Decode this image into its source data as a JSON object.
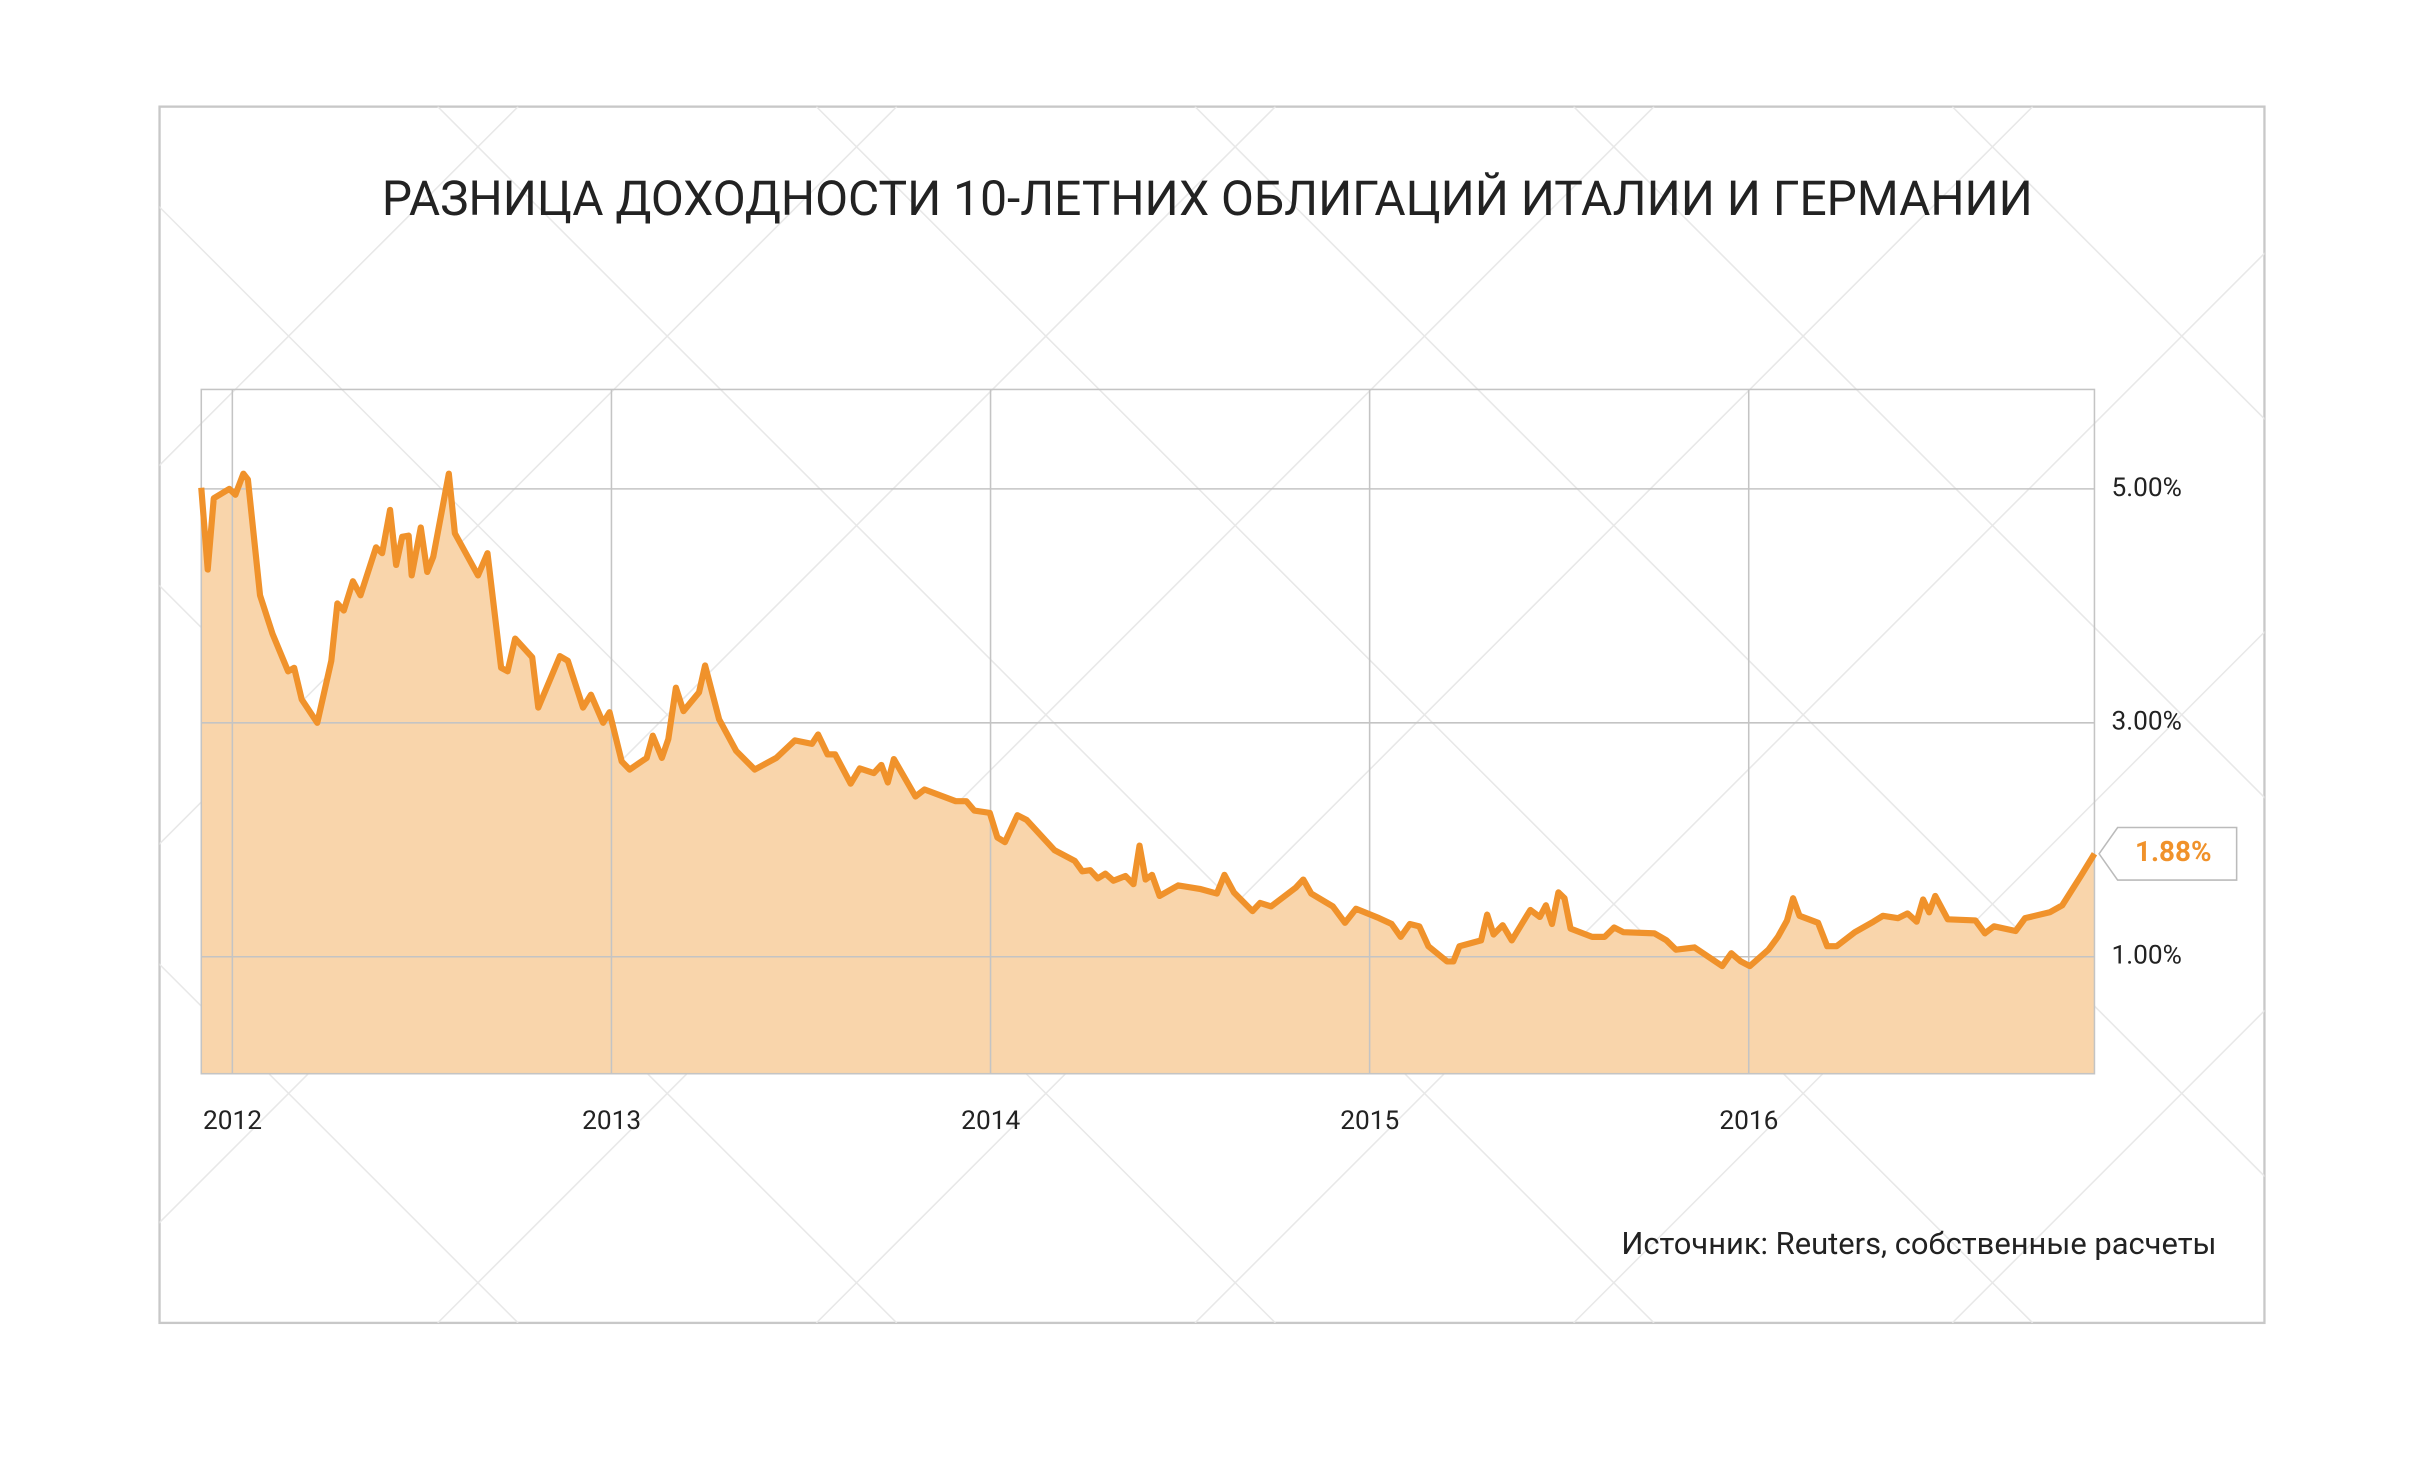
{
  "chart_data": {
    "type": "line",
    "title": "РАЗНИЦА ДОХОДНОСТИ 10-ЛЕТНИХ ОБЛИГАЦИЙ ИТАЛИИ И ГЕРМАНИИ",
    "source": "Источник: Reuters, собственные расчеты",
    "end_label": "1.88%",
    "color": "#f0922b",
    "fill_color": "#f9d5ab",
    "area": true,
    "grid": true,
    "xlim": [
      2011.918,
      2016.912
    ],
    "xticks": [
      2012,
      2013,
      2014,
      2015,
      2016
    ],
    "ylim": [
      0,
      5.85
    ],
    "yticks": [
      {
        "value": 1,
        "label": "1.00%"
      },
      {
        "value": 3,
        "label": "3.00%"
      },
      {
        "value": 5,
        "label": "5.00%"
      }
    ],
    "x": [
      2011.918,
      2011.935,
      2011.951,
      2011.992,
      2012.008,
      2012.029,
      2012.041,
      2012.073,
      2012.106,
      2012.147,
      2012.163,
      2012.183,
      2012.224,
      2012.261,
      2012.277,
      2012.294,
      2012.318,
      2012.338,
      2012.379,
      2012.395,
      2012.416,
      2012.432,
      2012.448,
      2012.465,
      2012.473,
      2012.497,
      2012.514,
      2012.53,
      2012.571,
      2012.587,
      2012.648,
      2012.673,
      2012.709,
      2012.726,
      2012.746,
      2012.791,
      2012.807,
      2012.864,
      2012.885,
      2012.925,
      2012.946,
      2012.978,
      2012.995,
      2013.027,
      2013.048,
      2013.093,
      2013.109,
      2013.133,
      2013.15,
      2013.17,
      2013.19,
      2013.231,
      2013.247,
      2013.284,
      2013.329,
      2013.378,
      2013.435,
      2013.484,
      2013.529,
      2013.545,
      2013.57,
      2013.59,
      2013.631,
      2013.655,
      2013.692,
      2013.712,
      2013.729,
      2013.745,
      2013.802,
      2013.826,
      2013.908,
      2013.936,
      2013.957,
      2013.998,
      2014.018,
      2014.038,
      2014.071,
      2014.095,
      2014.169,
      2014.222,
      2014.242,
      2014.263,
      2014.283,
      2014.303,
      2014.324,
      2014.356,
      2014.377,
      2014.393,
      2014.409,
      2014.426,
      2014.446,
      2014.495,
      2014.552,
      2014.597,
      2014.617,
      2014.642,
      2014.691,
      2014.711,
      2014.74,
      2014.805,
      2014.825,
      2014.846,
      2014.903,
      2014.935,
      2014.964,
      2015.025,
      2015.058,
      2015.082,
      2015.106,
      2015.131,
      2015.155,
      2015.204,
      2015.221,
      2015.237,
      2015.294,
      2015.31,
      2015.327,
      2015.351,
      2015.375,
      2015.424,
      2015.449,
      2015.465,
      2015.481,
      2015.498,
      2015.514,
      2015.53,
      2015.587,
      2015.62,
      2015.645,
      2015.669,
      2015.751,
      2015.783,
      2015.808,
      2015.857,
      2015.93,
      2015.954,
      2015.979,
      2016.003,
      2016.052,
      2016.077,
      2016.101,
      2016.117,
      2016.134,
      2016.183,
      2016.207,
      2016.232,
      2016.28,
      2016.329,
      2016.354,
      2016.394,
      2016.419,
      2016.443,
      2016.46,
      2016.476,
      2016.492,
      2016.525,
      2016.598,
      2016.623,
      2016.647,
      2016.704,
      2016.729,
      2016.794,
      2016.827,
      2016.876,
      2016.912
    ],
    "values": [
      5.01,
      4.31,
      4.92,
      5.0,
      4.95,
      5.13,
      5.08,
      4.09,
      3.76,
      3.44,
      3.47,
      3.2,
      3.0,
      3.53,
      4.02,
      3.96,
      4.21,
      4.09,
      4.5,
      4.45,
      4.82,
      4.35,
      4.59,
      4.6,
      4.26,
      4.67,
      4.29,
      4.42,
      5.13,
      4.62,
      4.26,
      4.45,
      3.47,
      3.44,
      3.72,
      3.56,
      3.13,
      3.57,
      3.53,
      3.13,
      3.24,
      3.0,
      3.09,
      2.67,
      2.6,
      2.7,
      2.89,
      2.7,
      2.86,
      3.3,
      3.1,
      3.26,
      3.49,
      3.03,
      2.76,
      2.6,
      2.7,
      2.85,
      2.82,
      2.9,
      2.73,
      2.73,
      2.48,
      2.61,
      2.57,
      2.64,
      2.49,
      2.69,
      2.37,
      2.43,
      2.33,
      2.33,
      2.25,
      2.23,
      2.02,
      1.98,
      2.21,
      2.17,
      1.91,
      1.82,
      1.73,
      1.74,
      1.67,
      1.71,
      1.65,
      1.69,
      1.62,
      1.95,
      1.66,
      1.7,
      1.52,
      1.61,
      1.58,
      1.54,
      1.7,
      1.55,
      1.39,
      1.46,
      1.43,
      1.59,
      1.66,
      1.54,
      1.43,
      1.29,
      1.41,
      1.33,
      1.28,
      1.17,
      1.28,
      1.26,
      1.09,
      0.96,
      0.96,
      1.09,
      1.14,
      1.36,
      1.19,
      1.27,
      1.14,
      1.4,
      1.34,
      1.44,
      1.28,
      1.55,
      1.5,
      1.24,
      1.17,
      1.17,
      1.25,
      1.21,
      1.2,
      1.14,
      1.06,
      1.08,
      0.92,
      1.03,
      0.96,
      0.92,
      1.06,
      1.17,
      1.31,
      1.5,
      1.35,
      1.29,
      1.09,
      1.09,
      1.21,
      1.3,
      1.35,
      1.33,
      1.37,
      1.3,
      1.49,
      1.38,
      1.52,
      1.32,
      1.31,
      1.2,
      1.26,
      1.22,
      1.33,
      1.38,
      1.44,
      1.69,
      1.88
    ]
  }
}
